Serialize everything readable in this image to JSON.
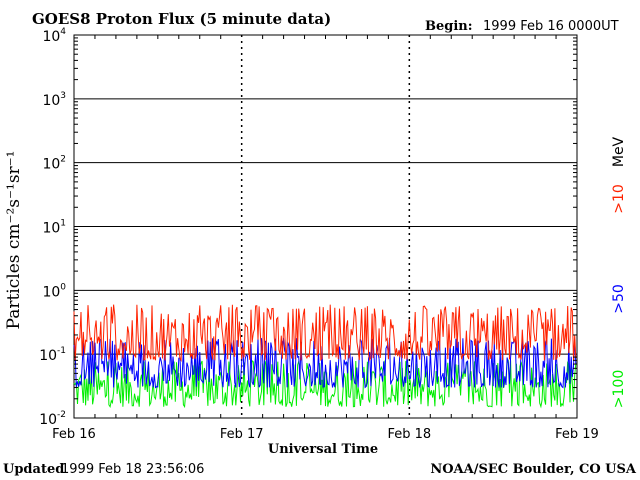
{
  "header": {
    "title": "GOES8 Proton Flux (5 minute data)",
    "begin_label": "Begin:",
    "begin_value": "1999 Feb 16 0000UT"
  },
  "footer": {
    "updated_label": "Updated",
    "updated_value": "1999 Feb 18 23:56:06",
    "credit": "NOAA/SEC Boulder, CO USA"
  },
  "chart_data": {
    "type": "line",
    "title": "GOES8 Proton Flux (5 minute data)",
    "xlabel": "Universal Time",
    "ylabel": "Particles cm⁻²s⁻¹sr⁻¹",
    "yscale": "log",
    "ylim": [
      0.01,
      10000
    ],
    "xlim": [
      "1999-02-16",
      "1999-02-19"
    ],
    "x_ticks": [
      "Feb 16",
      "Feb 17",
      "Feb 18",
      "Feb 19"
    ],
    "y_ticks": [
      {
        "base": "10",
        "exp": "-2"
      },
      {
        "base": "10",
        "exp": "-1"
      },
      {
        "base": "10",
        "exp": "0"
      },
      {
        "base": "10",
        "exp": "1"
      },
      {
        "base": "10",
        "exp": "2"
      },
      {
        "base": "10",
        "exp": "3"
      },
      {
        "base": "10",
        "exp": "4"
      }
    ],
    "grid": "horizontal at decades, dashed vertical at day boundaries",
    "legend_placement": "right",
    "unit_label": "MeV",
    "series": [
      {
        "name": ">10",
        "color": "#ff2200",
        "typical_range": [
          0.08,
          0.6
        ]
      },
      {
        "name": ">50",
        "color": "#0000ff",
        "typical_range": [
          0.03,
          0.18
        ]
      },
      {
        "name": ">100",
        "color": "#00ee00",
        "typical_range": [
          0.015,
          0.08
        ]
      }
    ]
  }
}
